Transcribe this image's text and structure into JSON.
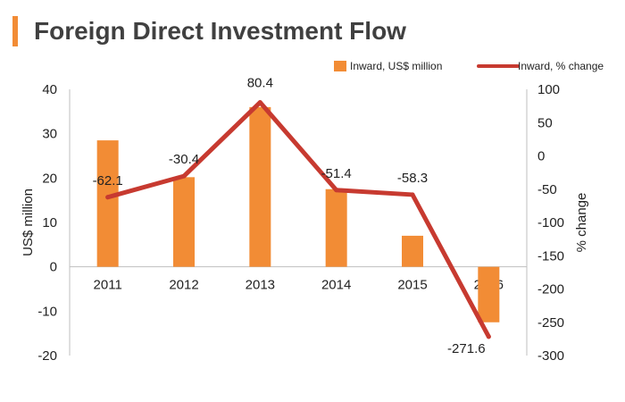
{
  "header": {
    "title": "Foreign Direct Investment Flow"
  },
  "colors": {
    "bar": "#F28C35",
    "line": "#C73A30",
    "accent": "#F28C35",
    "text": "#222222",
    "axis": "#bfbfbf"
  },
  "chart_data": {
    "type": "bar+line",
    "title": "Foreign Direct Investment Flow",
    "categories": [
      "2011",
      "2012",
      "2013",
      "2014",
      "2015",
      "2016"
    ],
    "series": [
      {
        "name": "Inward, US$ million",
        "type": "bar",
        "axis": "left",
        "values": [
          28.5,
          20.2,
          36.0,
          17.5,
          7.0,
          -12.5
        ]
      },
      {
        "name": "Inward, % change",
        "type": "line",
        "axis": "right",
        "values": [
          -62.1,
          -30.4,
          80.4,
          -51.4,
          -58.3,
          -271.6
        ],
        "labels": [
          "-62.1",
          "-30.4",
          "80.4",
          "-51.4",
          "-58.3",
          "-271.6"
        ]
      }
    ],
    "y_left": {
      "label": "US$ million",
      "ylim": [
        -20,
        40
      ],
      "ticks": [
        40,
        30,
        20,
        10,
        0,
        -10,
        -20
      ]
    },
    "y_right": {
      "label": "% change",
      "ylim": [
        -300,
        100
      ],
      "ticks": [
        100,
        50,
        0,
        -50,
        -100,
        -150,
        -200,
        -250,
        -300
      ]
    },
    "legend": "top-right",
    "grid": false
  }
}
